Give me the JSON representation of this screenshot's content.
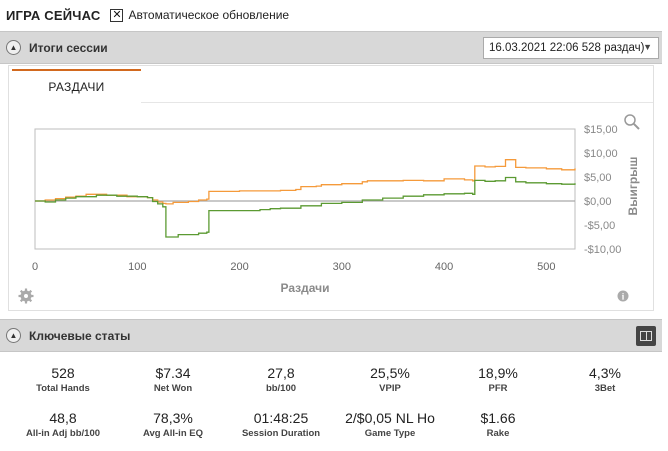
{
  "topbar": {
    "title": "ИГРА СЕЙЧАС",
    "checkbox_mark": "✕",
    "checkbox_label": "Автоматическое обновление",
    "checkbox_checked": true
  },
  "session": {
    "header_title": "Итоги сессии",
    "collapse_icon": "chevron-up-icon",
    "selected_session": "16.03.2021 22:06 528 раздач)",
    "dropdown_icon": "chevron-down-icon"
  },
  "tabs": [
    {
      "label": "РАЗДАЧИ",
      "active": true
    }
  ],
  "chart": {
    "icons": {
      "zoom": "zoom-icon",
      "settings": "gear-icon",
      "info": "info-icon"
    },
    "colors": {
      "orange": "#f59a3a",
      "green": "#5b9a32",
      "zero_line": "#a9a9a9",
      "grid": "#e6e6e6",
      "frame": "#bdbdbd"
    }
  },
  "chart_data": {
    "type": "line",
    "xlabel": "Раздачи",
    "ylabel": "Выигрыш",
    "xlim": [
      0,
      528
    ],
    "ylim": [
      -10,
      15
    ],
    "xticks": [
      0,
      100,
      200,
      300,
      400,
      500
    ],
    "yticks": [
      15,
      10,
      5,
      0,
      -5,
      -10
    ],
    "ytick_labels": [
      "$15,00",
      "$10,00",
      "$5,00",
      "$0,00",
      "-$5,00",
      "-$10,00"
    ],
    "grid": false,
    "series": [
      {
        "color": "orange",
        "x": [
          0,
          10,
          20,
          30,
          40,
          50,
          70,
          90,
          110,
          115,
          120,
          125,
          128,
          135,
          150,
          160,
          168,
          170,
          180,
          200,
          220,
          240,
          255,
          260,
          275,
          280,
          300,
          320,
          325,
          340,
          360,
          380,
          400,
          420,
          428,
          430,
          440,
          450,
          460,
          470,
          480,
          500,
          515,
          528
        ],
        "y": [
          0.0,
          0.2,
          0.5,
          0.8,
          1.0,
          1.4,
          1.2,
          0.9,
          0.7,
          0.2,
          -0.2,
          -0.5,
          -0.6,
          -0.3,
          -0.1,
          0.2,
          0.4,
          2.0,
          2.0,
          2.1,
          2.1,
          2.2,
          2.4,
          3.0,
          3.1,
          3.4,
          3.6,
          4.0,
          4.2,
          4.2,
          4.3,
          4.2,
          4.6,
          4.4,
          4.2,
          7.3,
          7.1,
          7.2,
          8.6,
          7.0,
          6.9,
          6.7,
          6.5,
          6.8
        ]
      },
      {
        "color": "green",
        "x": [
          0,
          10,
          20,
          30,
          40,
          60,
          80,
          100,
          110,
          115,
          120,
          125,
          128,
          140,
          160,
          168,
          170,
          180,
          200,
          220,
          230,
          240,
          260,
          280,
          300,
          320,
          340,
          360,
          380,
          400,
          420,
          428,
          430,
          440,
          450,
          460,
          470,
          480,
          500,
          515,
          528
        ],
        "y": [
          0.0,
          -0.2,
          0.2,
          0.6,
          0.9,
          1.2,
          1.0,
          0.9,
          0.7,
          -0.1,
          -0.6,
          -1.2,
          -7.5,
          -7.0,
          -6.7,
          -6.5,
          -2.0,
          -2.0,
          -2.0,
          -1.8,
          -1.6,
          -1.5,
          -1.0,
          -0.5,
          -0.3,
          0.2,
          0.6,
          1.0,
          1.3,
          1.5,
          1.6,
          1.4,
          4.3,
          4.1,
          4.2,
          4.9,
          4.0,
          3.8,
          3.6,
          3.5,
          3.7
        ]
      }
    ]
  },
  "key_stats": {
    "header_title": "Ключевые статы",
    "collapse_icon": "chevron-up-icon",
    "layout_icon": "columns-icon",
    "row1": [
      {
        "value": "528",
        "label": "Total Hands"
      },
      {
        "value": "$7.34",
        "label": "Net Won"
      },
      {
        "value": "27,8",
        "label": "bb/100"
      },
      {
        "value": "25,5%",
        "label": "VPIP"
      },
      {
        "value": "18,9%",
        "label": "PFR"
      },
      {
        "value": "4,3%",
        "label": "3Bet"
      }
    ],
    "row2": [
      {
        "value": "48,8",
        "label": "All-in Adj bb/100"
      },
      {
        "value": "78,3%",
        "label": "Avg All-in EQ"
      },
      {
        "value": "01:48:25",
        "label": "Session Duration"
      },
      {
        "value": "2/$0,05 NL Ho",
        "label": "Game Type"
      },
      {
        "value": "$1.66",
        "label": "Rake"
      }
    ]
  }
}
